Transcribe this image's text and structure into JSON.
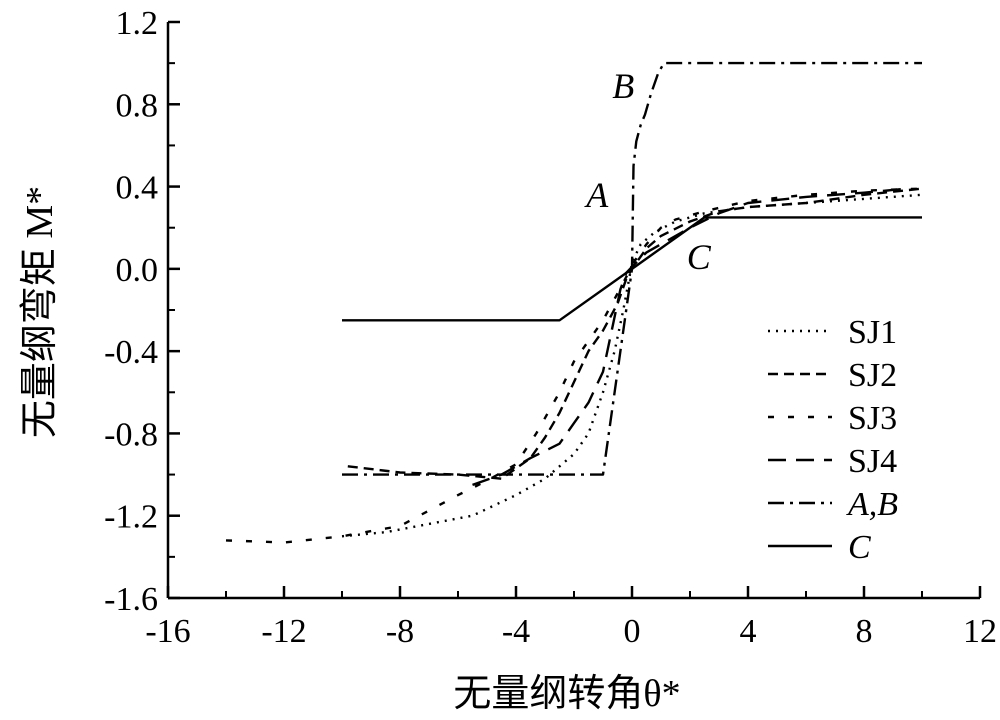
{
  "chart_data": {
    "type": "line",
    "title": "",
    "xlabel": "无量纲转角θ*",
    "ylabel": "无量纲弯矩 M*",
    "xlim": [
      -16,
      12
    ],
    "ylim": [
      -1.6,
      1.2
    ],
    "x_ticks": [
      "-16",
      "-12",
      "-8",
      "-4",
      "0",
      "4",
      "8",
      "12"
    ],
    "y_ticks": [
      "1.2",
      "0.8",
      "0.4",
      "0.0",
      "-0.4",
      "-0.8",
      "-1.2",
      "-1.6"
    ],
    "legend_position": "bottom-right",
    "annotations": [
      {
        "text": "A",
        "x": -1.2,
        "y": 0.3
      },
      {
        "text": "B",
        "x": -0.3,
        "y": 0.83
      },
      {
        "text": "C",
        "x": 2.3,
        "y": 0.0
      }
    ],
    "series": [
      {
        "name": "SJ1",
        "dash": "dot",
        "x": [
          -10,
          -8.5,
          -7,
          -5.5,
          -4,
          -3,
          -2,
          -1.5,
          -1,
          -0.6,
          -0.3,
          -0.1,
          0,
          0.3,
          0.8,
          1.5,
          2.5,
          4,
          6,
          8,
          10
        ],
        "y": [
          -1.3,
          -1.28,
          -1.24,
          -1.2,
          -1.1,
          -1.02,
          -0.9,
          -0.8,
          -0.6,
          -0.4,
          -0.2,
          -0.05,
          0.03,
          0.12,
          0.18,
          0.23,
          0.27,
          0.3,
          0.32,
          0.34,
          0.36
        ]
      },
      {
        "name": "SJ2",
        "dash": "dash",
        "x": [
          -9.8,
          -8,
          -6,
          -4.5,
          -3.5,
          -3,
          -2.5,
          -2,
          -1.5,
          -1,
          -0.5,
          -0.2,
          0,
          0.5,
          1,
          2,
          3,
          4,
          6,
          8,
          10
        ],
        "y": [
          -0.96,
          -0.99,
          -1.0,
          -1.02,
          -0.92,
          -0.82,
          -0.7,
          -0.55,
          -0.4,
          -0.3,
          -0.17,
          -0.05,
          0.0,
          0.1,
          0.16,
          0.23,
          0.28,
          0.3,
          0.32,
          0.36,
          0.39
        ]
      },
      {
        "name": "SJ3",
        "dash": "sparse",
        "x": [
          -14,
          -12,
          -10,
          -8,
          -6,
          -5,
          -4,
          -3.3,
          -2.5,
          -2,
          -1.5,
          -1,
          -0.5,
          -0.2,
          0,
          0.5,
          1,
          1.5,
          2.5,
          4,
          6,
          8,
          10
        ],
        "y": [
          -1.32,
          -1.33,
          -1.3,
          -1.25,
          -1.1,
          -1.03,
          -0.95,
          -0.8,
          -0.6,
          -0.45,
          -0.35,
          -0.25,
          -0.12,
          -0.04,
          0.02,
          0.12,
          0.2,
          0.24,
          0.28,
          0.33,
          0.36,
          0.38,
          0.39
        ]
      },
      {
        "name": "SJ4",
        "dash": "longdash",
        "x": [
          -5.5,
          -4.5,
          -3.5,
          -2.5,
          -2,
          -1.5,
          -1,
          -0.7,
          -0.4,
          -0.2,
          0,
          0.5,
          1,
          2,
          3,
          4,
          6,
          8,
          9.5
        ],
        "y": [
          -1.05,
          -1.0,
          -0.92,
          -0.85,
          -0.75,
          -0.65,
          -0.5,
          -0.3,
          -0.1,
          -0.02,
          0.01,
          0.08,
          0.12,
          0.2,
          0.27,
          0.32,
          0.35,
          0.37,
          0.39
        ]
      },
      {
        "name": "A,B",
        "dash": "dashdot",
        "x": [
          -10,
          -1,
          0,
          0.05,
          0.15,
          0.3,
          0.45,
          0.65,
          0.9,
          1.1,
          10
        ],
        "y": [
          -1.0,
          -1.0,
          0.0,
          0.5,
          0.62,
          0.7,
          0.75,
          0.85,
          0.95,
          1.0,
          1.0
        ]
      },
      {
        "name": "C",
        "dash": "solid",
        "x": [
          -10,
          -2.5,
          2.5,
          10
        ],
        "y": [
          -0.25,
          -0.25,
          0.25,
          0.25
        ]
      }
    ]
  }
}
